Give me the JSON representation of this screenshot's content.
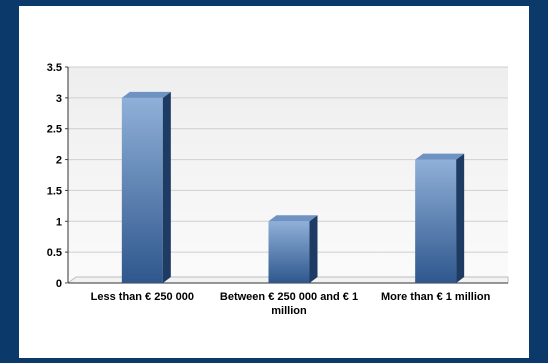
{
  "colors": {
    "border": "#0b3a6a",
    "plot_background_top": "#eeeeee",
    "plot_background_bottom": "#fbfbfb",
    "bar_light": "#8fb0d8",
    "bar_dark": "#2f578d",
    "bar_side": "#1e3b63",
    "bar_top": "#6e92c2",
    "gridline": "#cfcfcf"
  },
  "chart_data": {
    "type": "bar",
    "categories": [
      [
        "Less than € 250 000"
      ],
      [
        "Between € 250 000 and € 1",
        "million"
      ],
      [
        "More than € 1 million"
      ]
    ],
    "values": [
      3,
      1,
      2
    ],
    "ylim": [
      0,
      3.5
    ],
    "yticks": [
      "0",
      "0.5",
      "1",
      "1.5",
      "2",
      "2.5",
      "3",
      "3.5"
    ],
    "grid": true,
    "title": "",
    "xlabel": "",
    "ylabel": ""
  }
}
